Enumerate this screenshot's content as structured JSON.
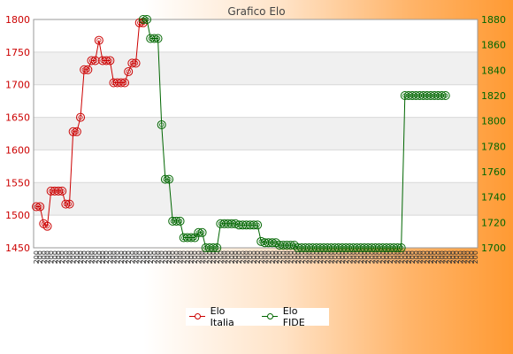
{
  "chart_data": {
    "type": "line",
    "title": "Grafico Elo",
    "x_tick_labels": [
      "200",
      "200",
      "200",
      "200",
      "200",
      "200",
      "200",
      "200",
      "200",
      "200",
      "200",
      "200",
      "200",
      "200",
      "200",
      "200",
      "200",
      "200",
      "200",
      "200",
      "200",
      "200",
      "200",
      "200",
      "200",
      "200",
      "200",
      "200",
      "200",
      "200",
      "200",
      "200",
      "200",
      "200",
      "200",
      "200",
      "200",
      "200",
      "200",
      "200",
      "200",
      "200",
      "200",
      "200",
      "200",
      "200",
      "200",
      "200",
      "200",
      "200",
      "200",
      "200",
      "200",
      "200",
      "200",
      "200",
      "200",
      "200",
      "200",
      "200",
      "200",
      "200",
      "200",
      "200",
      "200",
      "200",
      "200",
      "200",
      "200",
      "200",
      "200",
      "200",
      "200",
      "200",
      "200",
      "200",
      "200",
      "200",
      "200",
      "200",
      "200",
      "200",
      "200",
      "200",
      "200",
      "200",
      "200",
      "200",
      "200",
      "200",
      "200",
      "200",
      "200",
      "200",
      "200",
      "200",
      "200",
      "200",
      "200",
      "200",
      "200",
      "200",
      "200",
      "200",
      "200",
      "200",
      "200",
      "200",
      "200",
      "200",
      "200",
      "200",
      "200",
      "200",
      "200",
      "200",
      "200",
      "200",
      "200",
      "200"
    ],
    "y_left": {
      "ylim": [
        1450,
        1800
      ],
      "ticks": [
        1450,
        1500,
        1550,
        1600,
        1650,
        1700,
        1750,
        1800
      ],
      "color": "#cc0000"
    },
    "y_right": {
      "ylim": [
        1700,
        1880
      ],
      "ticks": [
        1700,
        1720,
        1740,
        1760,
        1780,
        1800,
        1820,
        1840,
        1860,
        1880
      ],
      "color": "#006600"
    },
    "grid": "horizontal bands",
    "legend_position": "bottom-center",
    "series": [
      {
        "name": "Elo Italia",
        "axis": "left",
        "color": "#cc0000",
        "points": [
          [
            0,
            1513
          ],
          [
            1,
            1513
          ],
          [
            2,
            1487
          ],
          [
            3,
            1483
          ],
          [
            4,
            1537
          ],
          [
            5,
            1537
          ],
          [
            6,
            1537
          ],
          [
            7,
            1537
          ],
          [
            8,
            1517
          ],
          [
            9,
            1517
          ],
          [
            10,
            1628
          ],
          [
            11,
            1628
          ],
          [
            12,
            1650
          ],
          [
            13,
            1723
          ],
          [
            14,
            1723
          ],
          [
            15,
            1737
          ],
          [
            16,
            1737
          ],
          [
            17,
            1768
          ],
          [
            18,
            1737
          ],
          [
            19,
            1737
          ],
          [
            20,
            1737
          ],
          [
            21,
            1703
          ],
          [
            22,
            1703
          ],
          [
            23,
            1703
          ],
          [
            24,
            1703
          ],
          [
            25,
            1720
          ],
          [
            26,
            1733
          ],
          [
            27,
            1733
          ],
          [
            28,
            1795
          ],
          [
            29,
            1795
          ]
        ]
      },
      {
        "name": "Elo FIDE",
        "axis": "right",
        "color": "#006600",
        "points": [
          [
            29,
            1880
          ],
          [
            30,
            1880
          ],
          [
            31,
            1865
          ],
          [
            32,
            1865
          ],
          [
            33,
            1865
          ],
          [
            34,
            1797
          ],
          [
            35,
            1754
          ],
          [
            36,
            1754
          ],
          [
            37,
            1721
          ],
          [
            38,
            1721
          ],
          [
            39,
            1721
          ],
          [
            40,
            1708
          ],
          [
            41,
            1708
          ],
          [
            42,
            1708
          ],
          [
            43,
            1708
          ],
          [
            44,
            1712
          ],
          [
            45,
            1712
          ],
          [
            46,
            1700
          ],
          [
            47,
            1700
          ],
          [
            48,
            1700
          ],
          [
            49,
            1700
          ],
          [
            50,
            1719
          ],
          [
            51,
            1719
          ],
          [
            52,
            1719
          ],
          [
            53,
            1719
          ],
          [
            54,
            1719
          ],
          [
            55,
            1718
          ],
          [
            56,
            1718
          ],
          [
            57,
            1718
          ],
          [
            58,
            1718
          ],
          [
            59,
            1718
          ],
          [
            60,
            1718
          ],
          [
            61,
            1705
          ],
          [
            62,
            1704
          ],
          [
            63,
            1704
          ],
          [
            64,
            1704
          ],
          [
            65,
            1704
          ],
          [
            66,
            1702
          ],
          [
            67,
            1702
          ],
          [
            68,
            1702
          ],
          [
            69,
            1702
          ],
          [
            70,
            1702
          ],
          [
            71,
            1700
          ],
          [
            72,
            1700
          ],
          [
            73,
            1700
          ],
          [
            74,
            1700
          ],
          [
            75,
            1700
          ],
          [
            76,
            1700
          ],
          [
            77,
            1700
          ],
          [
            78,
            1700
          ],
          [
            79,
            1700
          ],
          [
            80,
            1700
          ],
          [
            81,
            1700
          ],
          [
            82,
            1700
          ],
          [
            83,
            1700
          ],
          [
            84,
            1700
          ],
          [
            85,
            1700
          ],
          [
            86,
            1700
          ],
          [
            87,
            1700
          ],
          [
            88,
            1700
          ],
          [
            89,
            1700
          ],
          [
            90,
            1700
          ],
          [
            91,
            1700
          ],
          [
            92,
            1700
          ],
          [
            93,
            1700
          ],
          [
            94,
            1700
          ],
          [
            95,
            1700
          ],
          [
            96,
            1700
          ],
          [
            97,
            1700
          ],
          [
            98,
            1700
          ],
          [
            99,
            1700
          ],
          [
            100,
            1820
          ],
          [
            101,
            1820
          ],
          [
            102,
            1820
          ],
          [
            103,
            1820
          ],
          [
            104,
            1820
          ],
          [
            105,
            1820
          ],
          [
            106,
            1820
          ],
          [
            107,
            1820
          ],
          [
            108,
            1820
          ],
          [
            109,
            1820
          ],
          [
            110,
            1820
          ],
          [
            111,
            1820
          ]
        ]
      }
    ]
  }
}
